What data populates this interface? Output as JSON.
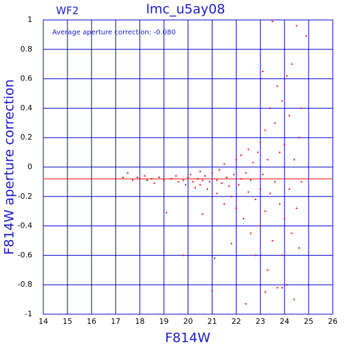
{
  "chart_data": {
    "type": "scatter",
    "title": "lmc_u5ay08",
    "subtitle": "WF2",
    "annotation": "Average aperture correction: -0.080",
    "x_label": "F814W",
    "y_label": "F814W aperture correction",
    "mean_line": -0.08,
    "color": "#ee0000",
    "grid": true,
    "grid_color": "#0000cc",
    "xlim": [
      14,
      26
    ],
    "xticks": [
      14,
      15,
      16,
      17,
      18,
      19,
      20,
      21,
      22,
      23,
      24,
      25,
      26
    ],
    "ylim": [
      -1,
      1
    ],
    "yticks": [
      -1,
      -0.8,
      -0.6,
      -0.4,
      -0.2,
      0,
      0.2,
      0.4,
      0.6,
      0.8,
      1
    ],
    "x": [
      17.3,
      17.5,
      17.7,
      17.9,
      18.0,
      18.2,
      18.3,
      18.5,
      18.6,
      18.8,
      19.0,
      19.1,
      19.3,
      19.5,
      19.6,
      19.8,
      19.9,
      20.0,
      20.1,
      20.2,
      20.3,
      20.4,
      20.5,
      20.5,
      20.6,
      20.7,
      20.8,
      20.9,
      21.0,
      21.0,
      21.1,
      21.2,
      21.2,
      21.3,
      21.4,
      21.5,
      21.5,
      21.6,
      21.7,
      21.8,
      21.9,
      22.0,
      22.0,
      22.1,
      22.2,
      22.2,
      22.3,
      22.4,
      22.5,
      22.5,
      22.6,
      22.6,
      22.7,
      22.8,
      22.8,
      22.9,
      23.0,
      23.0,
      23.0,
      23.1,
      23.1,
      23.2,
      23.2,
      23.3,
      23.3,
      23.4,
      23.4,
      23.5,
      23.5,
      23.6,
      23.6,
      23.7,
      23.7,
      23.8,
      23.8,
      23.9,
      23.9,
      24.0,
      24.0,
      24.1,
      24.1,
      24.2,
      24.2,
      24.3,
      24.3,
      24.4,
      24.4,
      24.5,
      24.5,
      24.6,
      24.6,
      24.7,
      24.7,
      23.2,
      22.4,
      21.8,
      20.6,
      19.8,
      24.9,
      23.9
    ],
    "values": [
      -0.07,
      -0.04,
      -0.09,
      -0.07,
      -0.08,
      -0.06,
      -0.09,
      -0.08,
      -0.11,
      -0.07,
      -0.09,
      -0.31,
      -0.08,
      -0.06,
      -0.1,
      -0.09,
      -0.12,
      -0.07,
      -0.05,
      -0.1,
      -0.14,
      -0.08,
      -0.03,
      -0.12,
      -0.09,
      -0.06,
      -0.15,
      -0.1,
      -0.04,
      -0.84,
      -0.62,
      -0.09,
      -0.18,
      -0.02,
      -0.11,
      -0.25,
      0.02,
      -0.07,
      -0.13,
      -0.2,
      -0.05,
      0.05,
      -0.28,
      -0.12,
      -0.08,
      0.08,
      -0.35,
      -0.04,
      -0.17,
      0.12,
      -0.45,
      -0.09,
      0.03,
      -0.22,
      -0.6,
      0.1,
      -0.15,
      0.17,
      -0.4,
      -0.05,
      0.65,
      -0.3,
      0.25,
      -0.7,
      0.05,
      -0.18,
      0.4,
      0.99,
      -0.5,
      -0.1,
      0.3,
      -0.82,
      0.55,
      -0.25,
      0.1,
      -0.6,
      0.45,
      -0.35,
      0.15,
      0.62,
      -0.8,
      0.35,
      -0.15,
      0.7,
      -0.45,
      0.05,
      -0.9,
      0.96,
      -0.28,
      0.2,
      -0.55,
      0.4,
      -0.1,
      -0.85,
      -0.93,
      -0.52,
      -0.32,
      -0.6,
      0.89,
      -0.82
    ]
  }
}
